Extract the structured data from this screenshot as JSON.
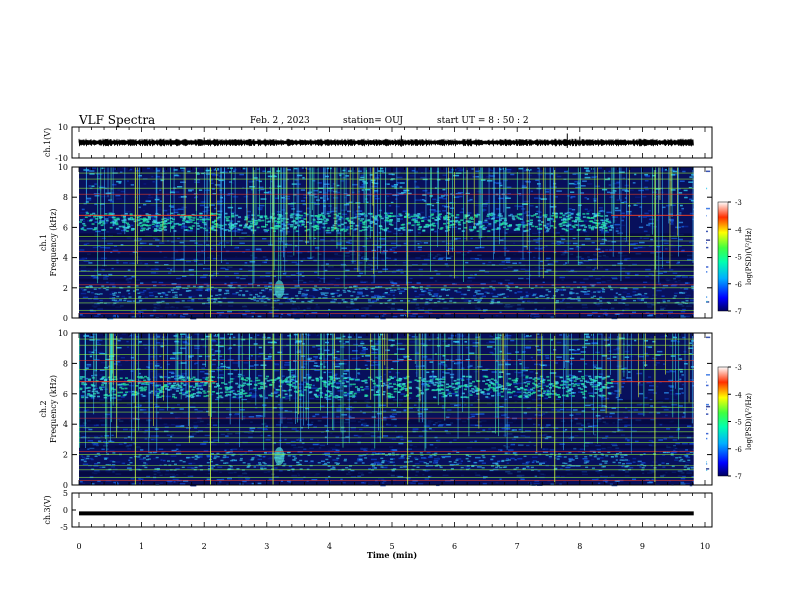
{
  "header": {
    "title": "VLF Spectra",
    "date": "Feb. 2 , 2023",
    "station": "station= OUJ",
    "start_time": "start UT = 8 : 50 : 2"
  },
  "chart_data": [
    {
      "type": "line",
      "panel": "ch1-waveform",
      "ylabel": "ch.1(V)",
      "ylim": [
        -10,
        10
      ],
      "yticks": [
        "10",
        "-10"
      ],
      "baseline": 0,
      "x_range": [
        0,
        10
      ]
    },
    {
      "type": "heatmap",
      "panel": "ch1-spectrogram",
      "ylabel": "ch.1\nFrequency (kHz)",
      "ylim": [
        0,
        10
      ],
      "yticks": [
        "0",
        "2",
        "4",
        "6",
        "8",
        "10"
      ],
      "x_range": [
        0,
        10
      ],
      "features": {
        "band_khz": [
          5.8,
          7.0
        ],
        "hiss_khz": [
          1.0,
          2.2
        ],
        "burst_time_min": 3.2
      },
      "colorbar": {
        "label": "log(PSD)(V²/Hz)",
        "range": [
          -7,
          -3
        ],
        "ticks": [
          "-3",
          "-4",
          "-5",
          "-6",
          "-7"
        ]
      }
    },
    {
      "type": "heatmap",
      "panel": "ch2-spectrogram",
      "ylabel": "ch.2\nFrequency (kHz)",
      "ylim": [
        0,
        10
      ],
      "yticks": [
        "0",
        "2",
        "4",
        "6",
        "8",
        "10"
      ],
      "x_range": [
        0,
        10
      ],
      "features": {
        "band_khz": [
          5.8,
          7.2
        ],
        "hiss_khz": [
          1.0,
          2.2
        ],
        "burst_time_min": 3.2
      },
      "colorbar": {
        "label": "log(PSD)(V²/Hz)",
        "range": [
          -7,
          -3
        ],
        "ticks": [
          "-3",
          "-4",
          "-5",
          "-6",
          "-7"
        ]
      }
    },
    {
      "type": "line",
      "panel": "ch3-waveform",
      "ylabel": "ch.3(V)",
      "ylim": [
        -5,
        5
      ],
      "yticks": [
        "5",
        "0",
        "-5"
      ],
      "value": -1,
      "x_range": [
        0,
        10
      ]
    }
  ],
  "x_axis": {
    "label": "Time (min)",
    "ticks": [
      "0",
      "1",
      "2",
      "3",
      "4",
      "5",
      "6",
      "7",
      "8",
      "9",
      "10"
    ]
  },
  "colors": {
    "bg_dark": "#08105c",
    "band": "#20e6a0",
    "line_green": "#9cff30",
    "line_red": "#ff4020"
  }
}
